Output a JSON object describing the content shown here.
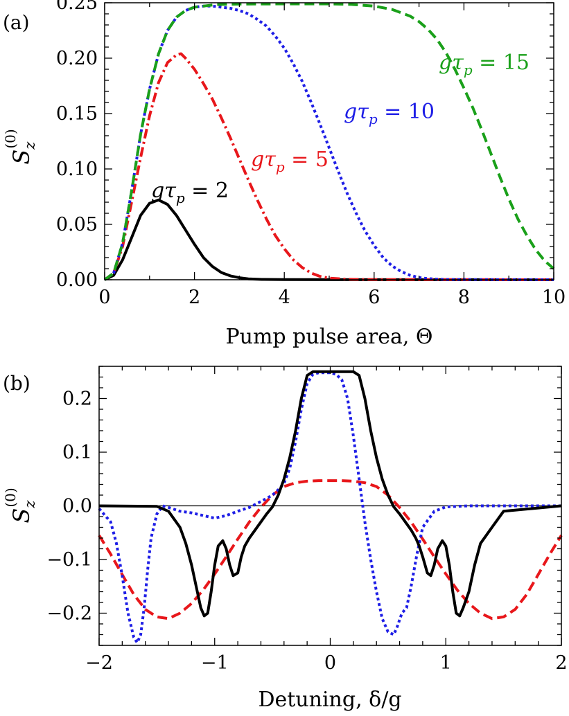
{
  "chart_data": [
    {
      "type": "line",
      "panel_label": "(a)",
      "xlabel": "Pump pulse area, Θ",
      "ylabel": {
        "main": "S",
        "sub": "z",
        "sup": "(0)"
      },
      "xlim": [
        0,
        10
      ],
      "ylim": [
        0,
        0.25
      ],
      "xticks": [
        {
          "value": 0,
          "label": "0"
        },
        {
          "value": 2,
          "label": "2"
        },
        {
          "value": 4,
          "label": "4"
        },
        {
          "value": 6,
          "label": "6"
        },
        {
          "value": 8,
          "label": "8"
        },
        {
          "value": 10,
          "label": "10"
        }
      ],
      "yticks": [
        {
          "value": 0,
          "label": "0.00"
        },
        {
          "value": 0.05,
          "label": "0.05"
        },
        {
          "value": 0.1,
          "label": "0.10"
        },
        {
          "value": 0.15,
          "label": "0.15"
        },
        {
          "value": 0.2,
          "label": "0.20"
        },
        {
          "value": 0.25,
          "label": "0.25"
        }
      ],
      "grid": false,
      "series": [
        {
          "color": "#000000",
          "style": "solid",
          "x": [
            0,
            0.2,
            0.4,
            0.6,
            0.8,
            1.0,
            1.2,
            1.4,
            1.6,
            1.8,
            2.0,
            2.2,
            2.4,
            2.6,
            2.8,
            3.0,
            3.2,
            3.5,
            4.0,
            10.0
          ],
          "y": [
            0,
            0.004,
            0.018,
            0.038,
            0.058,
            0.069,
            0.072,
            0.068,
            0.058,
            0.045,
            0.032,
            0.02,
            0.012,
            0.0065,
            0.0035,
            0.0018,
            0.0008,
            0.0003,
            0.0001,
            0
          ]
        },
        {
          "color": "#e8171b",
          "style": "dashdot",
          "x": [
            0,
            0.2,
            0.4,
            0.6,
            0.8,
            1.0,
            1.2,
            1.4,
            1.6,
            1.7,
            1.8,
            2.0,
            2.2,
            2.4,
            2.6,
            2.8,
            3.0,
            3.2,
            3.4,
            3.6,
            3.8,
            4.0,
            4.2,
            4.4,
            4.6,
            4.8,
            5.0,
            5.4,
            6.0,
            10.0
          ],
          "y": [
            0,
            0.006,
            0.03,
            0.07,
            0.11,
            0.148,
            0.178,
            0.196,
            0.203,
            0.204,
            0.2,
            0.19,
            0.177,
            0.163,
            0.146,
            0.128,
            0.109,
            0.09,
            0.072,
            0.055,
            0.04,
            0.028,
            0.018,
            0.011,
            0.006,
            0.003,
            0.0015,
            0.0004,
            0.0001,
            0
          ]
        },
        {
          "color": "#1e1ee6",
          "style": "dotted",
          "x": [
            0,
            0.2,
            0.4,
            0.6,
            0.8,
            1.0,
            1.2,
            1.4,
            1.6,
            1.8,
            2.0,
            2.2,
            2.4,
            2.6,
            2.8,
            3.0,
            3.2,
            3.4,
            3.6,
            3.8,
            4.0,
            4.2,
            4.4,
            4.6,
            4.8,
            5.0,
            5.2,
            5.4,
            5.6,
            5.8,
            6.0,
            6.2,
            6.4,
            6.6,
            6.8,
            7.0,
            7.2,
            7.4,
            7.6,
            8.0,
            10.0
          ],
          "y": [
            0,
            0.006,
            0.033,
            0.08,
            0.131,
            0.172,
            0.204,
            0.225,
            0.237,
            0.243,
            0.246,
            0.247,
            0.247,
            0.246,
            0.245,
            0.243,
            0.24,
            0.235,
            0.229,
            0.22,
            0.209,
            0.195,
            0.179,
            0.16,
            0.14,
            0.119,
            0.098,
            0.078,
            0.06,
            0.044,
            0.031,
            0.02,
            0.0125,
            0.0075,
            0.004,
            0.002,
            0.001,
            0.0005,
            0.0002,
            0.0001,
            0
          ]
        },
        {
          "color": "#1aa01a",
          "style": "dashed",
          "x": [
            0,
            0.2,
            0.4,
            0.6,
            0.8,
            1.0,
            1.2,
            1.4,
            1.6,
            1.8,
            2.0,
            2.2,
            2.4,
            2.6,
            3.0,
            4.0,
            5.0,
            5.5,
            6.0,
            6.4,
            6.8,
            7.0,
            7.2,
            7.4,
            7.6,
            7.8,
            8.0,
            8.2,
            8.4,
            8.6,
            8.8,
            9.0,
            9.2,
            9.4,
            9.6,
            9.8,
            10.0
          ],
          "y": [
            0,
            0.006,
            0.033,
            0.08,
            0.131,
            0.172,
            0.204,
            0.225,
            0.237,
            0.243,
            0.246,
            0.247,
            0.248,
            0.2485,
            0.2488,
            0.249,
            0.249,
            0.2485,
            0.247,
            0.244,
            0.238,
            0.233,
            0.226,
            0.217,
            0.205,
            0.19,
            0.173,
            0.155,
            0.135,
            0.114,
            0.093,
            0.073,
            0.055,
            0.04,
            0.027,
            0.017,
            0.01
          ]
        }
      ],
      "annotations": [
        {
          "prefix": "gτ",
          "sub": "p",
          "suffix": " = 2",
          "color": "#000000"
        },
        {
          "prefix": "gτ",
          "sub": "p",
          "suffix": " = 5",
          "color": "#e8171b"
        },
        {
          "prefix": "gτ",
          "sub": "p",
          "suffix": " = 10",
          "color": "#1e1ee6"
        },
        {
          "prefix": "gτ",
          "sub": "p",
          "suffix": " = 15",
          "color": "#1aa01a"
        }
      ]
    },
    {
      "type": "line",
      "panel_label": "(b)",
      "xlabel": "Detuning, δ/g",
      "ylabel": {
        "main": "S",
        "sub": "z",
        "sup": "(0)"
      },
      "xlim": [
        -2,
        2
      ],
      "ylim": [
        -0.26,
        0.26
      ],
      "xticks": [
        {
          "value": -2,
          "label": "−2"
        },
        {
          "value": -1,
          "label": "−1"
        },
        {
          "value": 0,
          "label": "0"
        },
        {
          "value": 1,
          "label": "1"
        },
        {
          "value": 2,
          "label": "2"
        }
      ],
      "yticks": [
        {
          "value": -0.2,
          "label": "−0.2"
        },
        {
          "value": -0.1,
          "label": "−0.1"
        },
        {
          "value": 0,
          "label": "0.0"
        },
        {
          "value": 0.1,
          "label": "0.1"
        },
        {
          "value": 0.2,
          "label": "0.2"
        }
      ],
      "grid": false,
      "zero_line": true,
      "series": [
        {
          "color": "#e8171b",
          "style": "dashed",
          "x": [
            -2.0,
            -1.9,
            -1.8,
            -1.7,
            -1.6,
            -1.5,
            -1.4,
            -1.3,
            -1.2,
            -1.1,
            -1.0,
            -0.9,
            -0.8,
            -0.7,
            -0.6,
            -0.5,
            -0.4,
            -0.3,
            -0.2,
            -0.1,
            0.0,
            0.1,
            0.2,
            0.3,
            0.4,
            0.5,
            0.6,
            0.7,
            0.8,
            0.9,
            1.0,
            1.1,
            1.2,
            1.3,
            1.4,
            1.5,
            1.6,
            1.7,
            1.8,
            1.9,
            2.0
          ],
          "y": [
            -0.055,
            -0.09,
            -0.128,
            -0.165,
            -0.193,
            -0.207,
            -0.21,
            -0.2,
            -0.182,
            -0.157,
            -0.127,
            -0.095,
            -0.062,
            -0.03,
            -0.003,
            0.02,
            0.036,
            0.043,
            0.046,
            0.047,
            0.047,
            0.047,
            0.046,
            0.043,
            0.036,
            0.02,
            -0.003,
            -0.03,
            -0.062,
            -0.095,
            -0.127,
            -0.157,
            -0.182,
            -0.2,
            -0.21,
            -0.207,
            -0.193,
            -0.165,
            -0.128,
            -0.09,
            -0.055
          ]
        },
        {
          "color": "#1e1ee6",
          "style": "dotted",
          "x": [
            -2.0,
            -1.9,
            -1.85,
            -1.8,
            -1.75,
            -1.7,
            -1.67,
            -1.64,
            -1.61,
            -1.58,
            -1.55,
            -1.5,
            -1.45,
            -1.4,
            -1.3,
            -1.2,
            -1.1,
            -1.0,
            -0.9,
            -0.8,
            -0.7,
            -0.6,
            -0.5,
            -0.45,
            -0.4,
            -0.35,
            -0.3,
            -0.25,
            -0.2,
            -0.15,
            -0.1,
            -0.05,
            0.0,
            0.05,
            0.1,
            0.15,
            0.2,
            0.25,
            0.3,
            0.35,
            0.4,
            0.45,
            0.5,
            0.55,
            0.58,
            0.62,
            0.66,
            0.7,
            0.75,
            0.8,
            0.9,
            1.0,
            1.2,
            1.4,
            1.6,
            2.0
          ],
          "y": [
            -0.005,
            -0.03,
            -0.07,
            -0.13,
            -0.2,
            -0.245,
            -0.255,
            -0.24,
            -0.19,
            -0.12,
            -0.06,
            -0.015,
            0.0,
            -0.003,
            -0.01,
            -0.013,
            -0.018,
            -0.023,
            -0.018,
            -0.01,
            -0.003,
            0.008,
            0.02,
            0.03,
            0.042,
            0.07,
            0.12,
            0.18,
            0.228,
            0.245,
            0.248,
            0.248,
            0.248,
            0.245,
            0.235,
            0.2,
            0.13,
            0.05,
            -0.03,
            -0.1,
            -0.16,
            -0.21,
            -0.235,
            -0.24,
            -0.225,
            -0.2,
            -0.19,
            -0.15,
            -0.09,
            -0.04,
            -0.01,
            -0.002,
            0.0,
            0.0,
            0.0,
            0.0
          ]
        },
        {
          "color": "#000000",
          "style": "solid",
          "x": [
            -2.0,
            -1.5,
            -1.4,
            -1.3,
            -1.25,
            -1.2,
            -1.15,
            -1.12,
            -1.09,
            -1.06,
            -1.03,
            -1.0,
            -0.97,
            -0.93,
            -0.9,
            -0.87,
            -0.84,
            -0.8,
            -0.77,
            -0.74,
            -0.7,
            -0.65,
            -0.6,
            -0.55,
            -0.5,
            -0.45,
            -0.4,
            -0.35,
            -0.3,
            -0.25,
            -0.2,
            -0.15,
            -0.1,
            -0.05,
            0.0,
            0.05,
            0.1,
            0.15,
            0.2,
            0.25,
            0.3,
            0.35,
            0.4,
            0.45,
            0.5,
            0.55,
            0.6,
            0.65,
            0.7,
            0.74,
            0.77,
            0.8,
            0.84,
            0.87,
            0.9,
            0.93,
            0.97,
            1.0,
            1.03,
            1.06,
            1.09,
            1.12,
            1.15,
            1.2,
            1.25,
            1.3,
            1.4,
            1.5,
            2.0
          ],
          "y": [
            0.0,
            -0.001,
            -0.01,
            -0.04,
            -0.07,
            -0.11,
            -0.16,
            -0.19,
            -0.205,
            -0.2,
            -0.16,
            -0.11,
            -0.075,
            -0.065,
            -0.08,
            -0.11,
            -0.13,
            -0.125,
            -0.095,
            -0.075,
            -0.06,
            -0.045,
            -0.03,
            -0.015,
            -0.002,
            0.02,
            0.05,
            0.09,
            0.14,
            0.2,
            0.243,
            0.25,
            0.25,
            0.25,
            0.25,
            0.25,
            0.25,
            0.25,
            0.25,
            0.243,
            0.2,
            0.14,
            0.09,
            0.05,
            0.02,
            -0.002,
            -0.015,
            -0.03,
            -0.045,
            -0.06,
            -0.075,
            -0.095,
            -0.125,
            -0.13,
            -0.11,
            -0.08,
            -0.065,
            -0.075,
            -0.11,
            -0.16,
            -0.2,
            -0.205,
            -0.19,
            -0.16,
            -0.11,
            -0.07,
            -0.04,
            -0.01,
            0.0
          ]
        }
      ]
    }
  ]
}
